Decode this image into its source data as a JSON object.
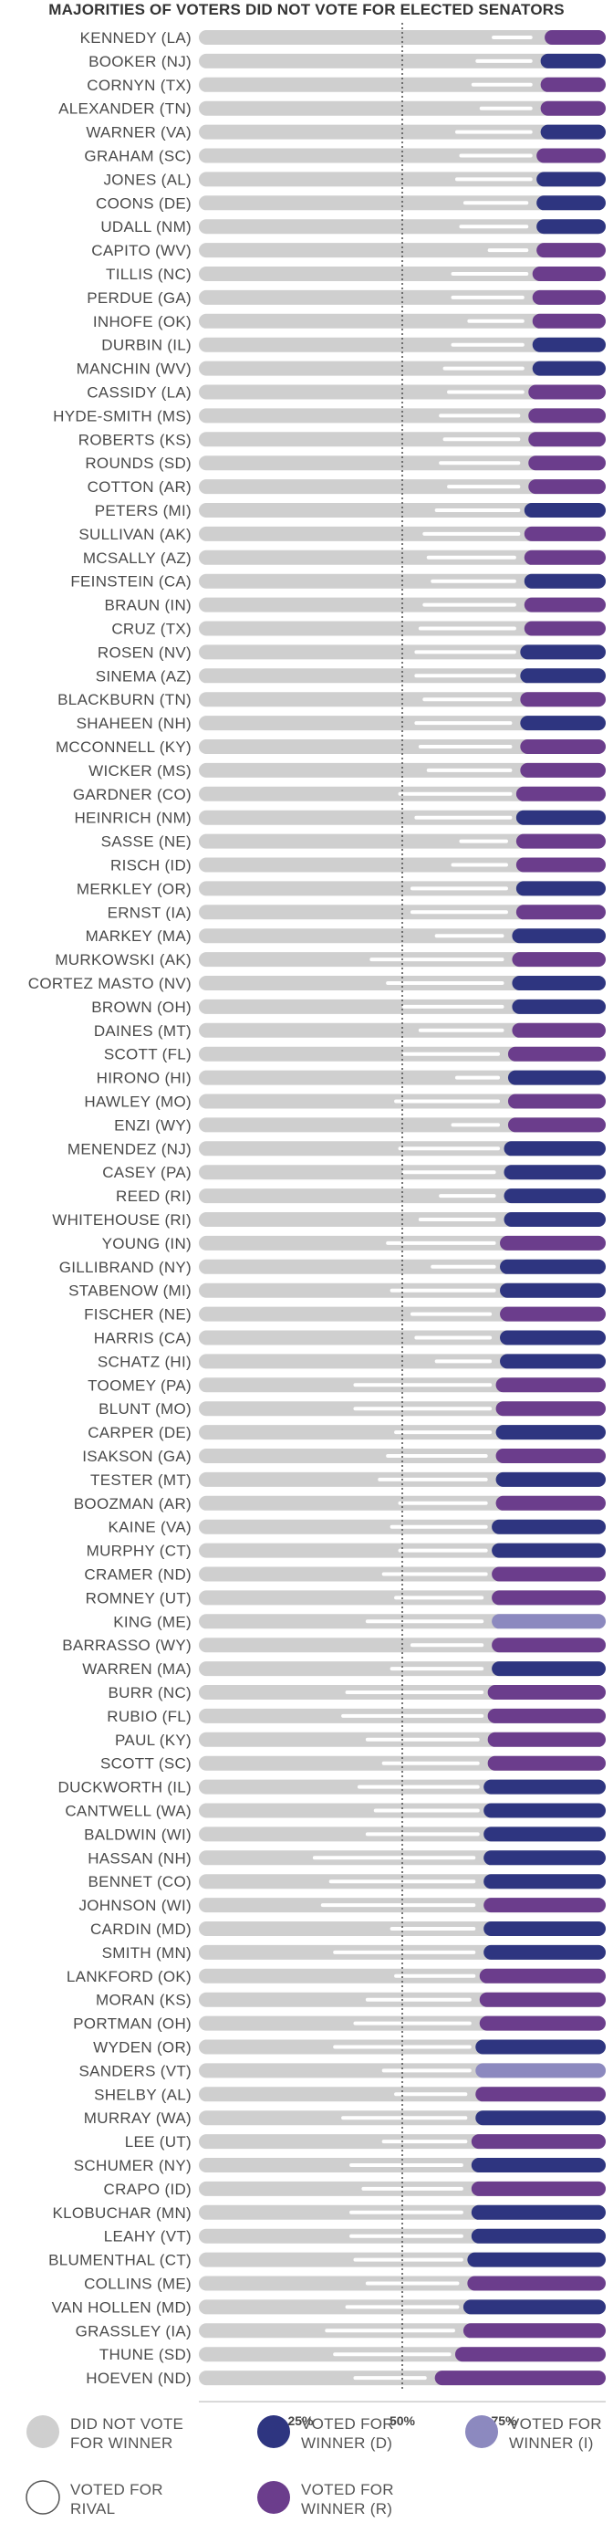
{
  "chart_data": {
    "type": "bar",
    "title": "MAJORITIES OF VOTERS DID NOT VOTE FOR ELECTED SENATORS",
    "x_ticks": [
      {
        "value": 25,
        "label": "25%"
      },
      {
        "value": 50,
        "label": "50%"
      },
      {
        "value": 75,
        "label": "75%"
      }
    ],
    "reference_line": 50,
    "xlim": [
      0,
      100
    ],
    "colors": {
      "did_not_vote": "#cfcfcf",
      "voted_for_rival": "#ffffff",
      "D": "#2e3580",
      "R": "#6b3d8c",
      "I": "#8c89bf"
    },
    "legend": [
      {
        "key": "did_not_vote",
        "lines": [
          "DID NOT VOTE",
          "FOR WINNER"
        ]
      },
      {
        "key": "D",
        "lines": [
          "VOTED FOR",
          "WINNER (D)"
        ]
      },
      {
        "key": "I",
        "lines": [
          "VOTED FOR",
          "WINNER (I)"
        ]
      },
      {
        "key": "voted_for_rival",
        "lines": [
          "VOTED FOR",
          "RIVAL"
        ]
      },
      {
        "key": "R",
        "lines": [
          "VOTED FOR",
          "WINNER (R)"
        ]
      }
    ],
    "series": [
      {
        "name": "Did not vote for winner",
        "key": "did_not_vote"
      },
      {
        "name": "Voted for rival",
        "key": "voted_for_rival"
      },
      {
        "name": "Voted for winner",
        "key": "winner"
      }
    ],
    "senators": [
      {
        "label": "KENNEDY (LA)",
        "party": "R",
        "rival_start": 72,
        "rival_end": 82,
        "winner_start": 85
      },
      {
        "label": "BOOKER (NJ)",
        "party": "D",
        "rival_start": 68,
        "rival_end": 82,
        "winner_start": 84
      },
      {
        "label": "CORNYN (TX)",
        "party": "R",
        "rival_start": 67,
        "rival_end": 82,
        "winner_start": 84
      },
      {
        "label": "ALEXANDER (TN)",
        "party": "R",
        "rival_start": 69,
        "rival_end": 82,
        "winner_start": 84
      },
      {
        "label": "WARNER (VA)",
        "party": "D",
        "rival_start": 63,
        "rival_end": 82,
        "winner_start": 84
      },
      {
        "label": "GRAHAM (SC)",
        "party": "R",
        "rival_start": 64,
        "rival_end": 82,
        "winner_start": 83
      },
      {
        "label": "JONES (AL)",
        "party": "D",
        "rival_start": 63,
        "rival_end": 82,
        "winner_start": 83
      },
      {
        "label": "COONS (DE)",
        "party": "D",
        "rival_start": 65,
        "rival_end": 81,
        "winner_start": 83
      },
      {
        "label": "UDALL (NM)",
        "party": "D",
        "rival_start": 64,
        "rival_end": 81,
        "winner_start": 83
      },
      {
        "label": "CAPITO (WV)",
        "party": "R",
        "rival_start": 71,
        "rival_end": 81,
        "winner_start": 83
      },
      {
        "label": "TILLIS (NC)",
        "party": "R",
        "rival_start": 62,
        "rival_end": 81,
        "winner_start": 82
      },
      {
        "label": "PERDUE (GA)",
        "party": "R",
        "rival_start": 62,
        "rival_end": 80,
        "winner_start": 82
      },
      {
        "label": "INHOFE (OK)",
        "party": "R",
        "rival_start": 66,
        "rival_end": 80,
        "winner_start": 82
      },
      {
        "label": "DURBIN (IL)",
        "party": "D",
        "rival_start": 62,
        "rival_end": 80,
        "winner_start": 82
      },
      {
        "label": "MANCHIN (WV)",
        "party": "D",
        "rival_start": 60,
        "rival_end": 80,
        "winner_start": 82
      },
      {
        "label": "CASSIDY (LA)",
        "party": "R",
        "rival_start": 61,
        "rival_end": 80,
        "winner_start": 81
      },
      {
        "label": "HYDE-SMITH (MS)",
        "party": "R",
        "rival_start": 59,
        "rival_end": 79,
        "winner_start": 81
      },
      {
        "label": "ROBERTS (KS)",
        "party": "R",
        "rival_start": 60,
        "rival_end": 79,
        "winner_start": 81
      },
      {
        "label": "ROUNDS (SD)",
        "party": "R",
        "rival_start": 59,
        "rival_end": 79,
        "winner_start": 81
      },
      {
        "label": "COTTON (AR)",
        "party": "R",
        "rival_start": 61,
        "rival_end": 79,
        "winner_start": 81
      },
      {
        "label": "PETERS (MI)",
        "party": "D",
        "rival_start": 58,
        "rival_end": 79,
        "winner_start": 80
      },
      {
        "label": "SULLIVAN (AK)",
        "party": "R",
        "rival_start": 55,
        "rival_end": 79,
        "winner_start": 80
      },
      {
        "label": "MCSALLY (AZ)",
        "party": "R",
        "rival_start": 56,
        "rival_end": 78,
        "winner_start": 80
      },
      {
        "label": "FEINSTEIN (CA)",
        "party": "D",
        "rival_start": 57,
        "rival_end": 78,
        "winner_start": 80
      },
      {
        "label": "BRAUN (IN)",
        "party": "R",
        "rival_start": 55,
        "rival_end": 78,
        "winner_start": 80
      },
      {
        "label": "CRUZ (TX)",
        "party": "R",
        "rival_start": 54,
        "rival_end": 78,
        "winner_start": 80
      },
      {
        "label": "ROSEN (NV)",
        "party": "D",
        "rival_start": 53,
        "rival_end": 78,
        "winner_start": 79
      },
      {
        "label": "SINEMA (AZ)",
        "party": "D",
        "rival_start": 53,
        "rival_end": 78,
        "winner_start": 79
      },
      {
        "label": "BLACKBURN (TN)",
        "party": "R",
        "rival_start": 55,
        "rival_end": 77,
        "winner_start": 79
      },
      {
        "label": "SHAHEEN (NH)",
        "party": "D",
        "rival_start": 53,
        "rival_end": 77,
        "winner_start": 79
      },
      {
        "label": "MCCONNELL (KY)",
        "party": "R",
        "rival_start": 54,
        "rival_end": 77,
        "winner_start": 79
      },
      {
        "label": "WICKER (MS)",
        "party": "R",
        "rival_start": 56,
        "rival_end": 77,
        "winner_start": 79
      },
      {
        "label": "GARDNER (CO)",
        "party": "R",
        "rival_start": 49,
        "rival_end": 77,
        "winner_start": 78
      },
      {
        "label": "HEINRICH (NM)",
        "party": "D",
        "rival_start": 53,
        "rival_end": 77,
        "winner_start": 78
      },
      {
        "label": "SASSE (NE)",
        "party": "R",
        "rival_start": 64,
        "rival_end": 76,
        "winner_start": 78
      },
      {
        "label": "RISCH (ID)",
        "party": "R",
        "rival_start": 62,
        "rival_end": 76,
        "winner_start": 78
      },
      {
        "label": "MERKLEY (OR)",
        "party": "D",
        "rival_start": 52,
        "rival_end": 76,
        "winner_start": 78
      },
      {
        "label": "ERNST (IA)",
        "party": "R",
        "rival_start": 52,
        "rival_end": 76,
        "winner_start": 78
      },
      {
        "label": "MARKEY (MA)",
        "party": "D",
        "rival_start": 58,
        "rival_end": 75,
        "winner_start": 77
      },
      {
        "label": "MURKOWSKI (AK)",
        "party": "R",
        "rival_start": 42,
        "rival_end": 75,
        "winner_start": 77
      },
      {
        "label": "CORTEZ MASTO (NV)",
        "party": "D",
        "rival_start": 46,
        "rival_end": 75,
        "winner_start": 77
      },
      {
        "label": "BROWN (OH)",
        "party": "D",
        "rival_start": 50,
        "rival_end": 75,
        "winner_start": 77
      },
      {
        "label": "DAINES (MT)",
        "party": "R",
        "rival_start": 54,
        "rival_end": 75,
        "winner_start": 77
      },
      {
        "label": "SCOTT (FL)",
        "party": "R",
        "rival_start": 50,
        "rival_end": 74,
        "winner_start": 76
      },
      {
        "label": "HIRONO (HI)",
        "party": "D",
        "rival_start": 63,
        "rival_end": 74,
        "winner_start": 76
      },
      {
        "label": "HAWLEY (MO)",
        "party": "R",
        "rival_start": 48,
        "rival_end": 74,
        "winner_start": 76
      },
      {
        "label": "ENZI (WY)",
        "party": "R",
        "rival_start": 62,
        "rival_end": 74,
        "winner_start": 76
      },
      {
        "label": "MENENDEZ (NJ)",
        "party": "D",
        "rival_start": 49,
        "rival_end": 74,
        "winner_start": 75
      },
      {
        "label": "CASEY (PA)",
        "party": "D",
        "rival_start": 50,
        "rival_end": 73,
        "winner_start": 75
      },
      {
        "label": "REED (RI)",
        "party": "D",
        "rival_start": 59,
        "rival_end": 73,
        "winner_start": 75
      },
      {
        "label": "WHITEHOUSE (RI)",
        "party": "D",
        "rival_start": 54,
        "rival_end": 73,
        "winner_start": 75
      },
      {
        "label": "YOUNG (IN)",
        "party": "R",
        "rival_start": 46,
        "rival_end": 73,
        "winner_start": 74
      },
      {
        "label": "GILLIBRAND (NY)",
        "party": "D",
        "rival_start": 57,
        "rival_end": 73,
        "winner_start": 74
      },
      {
        "label": "STABENOW (MI)",
        "party": "D",
        "rival_start": 47,
        "rival_end": 73,
        "winner_start": 74
      },
      {
        "label": "FISCHER (NE)",
        "party": "R",
        "rival_start": 52,
        "rival_end": 72,
        "winner_start": 74
      },
      {
        "label": "HARRIS (CA)",
        "party": "D",
        "rival_start": 53,
        "rival_end": 72,
        "winner_start": 74
      },
      {
        "label": "SCHATZ (HI)",
        "party": "D",
        "rival_start": 58,
        "rival_end": 72,
        "winner_start": 74
      },
      {
        "label": "TOOMEY (PA)",
        "party": "R",
        "rival_start": 38,
        "rival_end": 72,
        "winner_start": 73
      },
      {
        "label": "BLUNT (MO)",
        "party": "R",
        "rival_start": 38,
        "rival_end": 72,
        "winner_start": 73
      },
      {
        "label": "CARPER (DE)",
        "party": "D",
        "rival_start": 48,
        "rival_end": 72,
        "winner_start": 73
      },
      {
        "label": "ISAKSON (GA)",
        "party": "R",
        "rival_start": 46,
        "rival_end": 71,
        "winner_start": 73
      },
      {
        "label": "TESTER (MT)",
        "party": "D",
        "rival_start": 44,
        "rival_end": 71,
        "winner_start": 73
      },
      {
        "label": "BOOZMAN (AR)",
        "party": "R",
        "rival_start": 49,
        "rival_end": 71,
        "winner_start": 73
      },
      {
        "label": "KAINE (VA)",
        "party": "D",
        "rival_start": 47,
        "rival_end": 71,
        "winner_start": 72
      },
      {
        "label": "MURPHY (CT)",
        "party": "D",
        "rival_start": 49,
        "rival_end": 71,
        "winner_start": 72
      },
      {
        "label": "CRAMER (ND)",
        "party": "R",
        "rival_start": 45,
        "rival_end": 71,
        "winner_start": 72
      },
      {
        "label": "ROMNEY (UT)",
        "party": "R",
        "rival_start": 48,
        "rival_end": 70,
        "winner_start": 72
      },
      {
        "label": "KING (ME)",
        "party": "I",
        "rival_start": 41,
        "rival_end": 70,
        "winner_start": 72
      },
      {
        "label": "BARRASSO (WY)",
        "party": "R",
        "rival_start": 52,
        "rival_end": 70,
        "winner_start": 72
      },
      {
        "label": "WARREN (MA)",
        "party": "D",
        "rival_start": 47,
        "rival_end": 70,
        "winner_start": 72
      },
      {
        "label": "BURR (NC)",
        "party": "R",
        "rival_start": 36,
        "rival_end": 70,
        "winner_start": 71
      },
      {
        "label": "RUBIO (FL)",
        "party": "R",
        "rival_start": 35,
        "rival_end": 70,
        "winner_start": 71
      },
      {
        "label": "PAUL (KY)",
        "party": "R",
        "rival_start": 41,
        "rival_end": 69,
        "winner_start": 71
      },
      {
        "label": "SCOTT (SC)",
        "party": "R",
        "rival_start": 45,
        "rival_end": 69,
        "winner_start": 71
      },
      {
        "label": "DUCKWORTH (IL)",
        "party": "D",
        "rival_start": 39,
        "rival_end": 69,
        "winner_start": 70
      },
      {
        "label": "CANTWELL (WA)",
        "party": "D",
        "rival_start": 43,
        "rival_end": 69,
        "winner_start": 70
      },
      {
        "label": "BALDWIN (WI)",
        "party": "D",
        "rival_start": 41,
        "rival_end": 69,
        "winner_start": 70
      },
      {
        "label": "HASSAN (NH)",
        "party": "D",
        "rival_start": 28,
        "rival_end": 68,
        "winner_start": 70
      },
      {
        "label": "BENNET (CO)",
        "party": "D",
        "rival_start": 32,
        "rival_end": 68,
        "winner_start": 70
      },
      {
        "label": "JOHNSON (WI)",
        "party": "R",
        "rival_start": 30,
        "rival_end": 68,
        "winner_start": 70
      },
      {
        "label": "CARDIN (MD)",
        "party": "D",
        "rival_start": 47,
        "rival_end": 68,
        "winner_start": 70
      },
      {
        "label": "SMITH (MN)",
        "party": "D",
        "rival_start": 33,
        "rival_end": 68,
        "winner_start": 70
      },
      {
        "label": "LANKFORD (OK)",
        "party": "R",
        "rival_start": 48,
        "rival_end": 68,
        "winner_start": 69
      },
      {
        "label": "MORAN (KS)",
        "party": "R",
        "rival_start": 41,
        "rival_end": 67,
        "winner_start": 69
      },
      {
        "label": "PORTMAN (OH)",
        "party": "R",
        "rival_start": 38,
        "rival_end": 67,
        "winner_start": 69
      },
      {
        "label": "WYDEN (OR)",
        "party": "D",
        "rival_start": 33,
        "rival_end": 67,
        "winner_start": 68
      },
      {
        "label": "SANDERS (VT)",
        "party": "I",
        "rival_start": 45,
        "rival_end": 67,
        "winner_start": 68
      },
      {
        "label": "SHELBY (AL)",
        "party": "R",
        "rival_start": 48,
        "rival_end": 66,
        "winner_start": 68
      },
      {
        "label": "MURRAY (WA)",
        "party": "D",
        "rival_start": 35,
        "rival_end": 66,
        "winner_start": 68
      },
      {
        "label": "LEE (UT)",
        "party": "R",
        "rival_start": 45,
        "rival_end": 66,
        "winner_start": 67
      },
      {
        "label": "SCHUMER (NY)",
        "party": "D",
        "rival_start": 37,
        "rival_end": 65,
        "winner_start": 67
      },
      {
        "label": "CRAPO (ID)",
        "party": "R",
        "rival_start": 40,
        "rival_end": 65,
        "winner_start": 67
      },
      {
        "label": "KLOBUCHAR (MN)",
        "party": "D",
        "rival_start": 37,
        "rival_end": 65,
        "winner_start": 67
      },
      {
        "label": "LEAHY (VT)",
        "party": "D",
        "rival_start": 37,
        "rival_end": 65,
        "winner_start": 67
      },
      {
        "label": "BLUMENTHAL (CT)",
        "party": "D",
        "rival_start": 38,
        "rival_end": 65,
        "winner_start": 66
      },
      {
        "label": "COLLINS (ME)",
        "party": "R",
        "rival_start": 41,
        "rival_end": 64,
        "winner_start": 66
      },
      {
        "label": "VAN HOLLEN (MD)",
        "party": "D",
        "rival_start": 36,
        "rival_end": 64,
        "winner_start": 65
      },
      {
        "label": "GRASSLEY (IA)",
        "party": "R",
        "rival_start": 31,
        "rival_end": 63,
        "winner_start": 65
      },
      {
        "label": "THUNE (SD)",
        "party": "R",
        "rival_start": 33,
        "rival_end": 62,
        "winner_start": 63
      },
      {
        "label": "HOEVEN (ND)",
        "party": "R",
        "rival_start": 38,
        "rival_end": 56,
        "winner_start": 58
      }
    ]
  }
}
